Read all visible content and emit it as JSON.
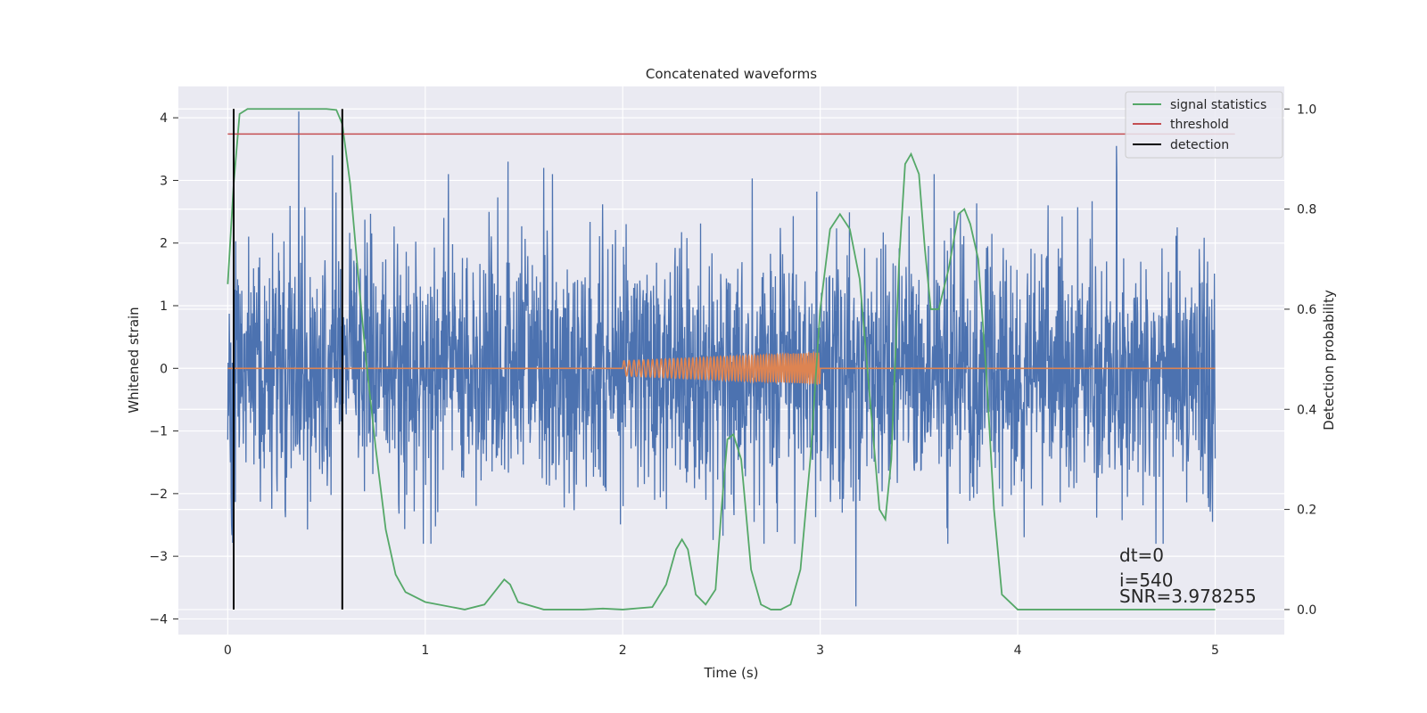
{
  "chart_data": {
    "type": "line",
    "title": "Concatenated waveforms",
    "xlabel": "Time (s)",
    "ylabel": "Whitened strain",
    "ylabel_right": "Detection probability",
    "xlim": [
      -0.25,
      5.35
    ],
    "ylim": [
      -4.25,
      4.5
    ],
    "ylim_right": [
      -0.05,
      1.045
    ],
    "x_ticks": [
      0,
      1,
      2,
      3,
      4,
      5
    ],
    "x_tick_labels": [
      "0",
      "1",
      "2",
      "3",
      "4",
      "5"
    ],
    "y_ticks": [
      -4,
      -3,
      -2,
      -1,
      0,
      1,
      2,
      3,
      4
    ],
    "y_tick_labels": [
      "−4",
      "−3",
      "−2",
      "−1",
      "0",
      "1",
      "2",
      "3",
      "4"
    ],
    "y_right_ticks": [
      0.0,
      0.2,
      0.4,
      0.6,
      0.8,
      1.0
    ],
    "y_right_tick_labels": [
      "0.0",
      "0.2",
      "0.4",
      "0.6",
      "0.8",
      "1.0"
    ],
    "grid": true,
    "legend_position": "top-right",
    "colors": {
      "strain": "#4c72b0",
      "template": "#dd8452",
      "signal_statistics": "#55a868",
      "threshold": "#c44e52",
      "detection": "#000000",
      "background": "#eaeaf2",
      "grid": "#ffffff"
    },
    "series": [
      {
        "name": "strain",
        "axis": "left",
        "description_source": "noise",
        "x_range": [
          0,
          5
        ],
        "amplitude_core": 1.0,
        "spikes": [
          {
            "x": 0.36,
            "y": 4.1
          },
          {
            "x": 0.53,
            "y": 3.4
          },
          {
            "x": 0.58,
            "y": -2.6
          },
          {
            "x": 1.42,
            "y": 3.3
          },
          {
            "x": 1.6,
            "y": 3.2
          },
          {
            "x": 3.18,
            "y": -3.8
          },
          {
            "x": 4.5,
            "y": 3.55
          },
          {
            "x": 4.7,
            "y": -2.8
          },
          {
            "x": 0.02,
            "y": -2.5
          }
        ]
      },
      {
        "name": "template",
        "axis": "left",
        "x_range": [
          0,
          5
        ],
        "chirp_start": 2.0,
        "chirp_end": 3.0,
        "amp_start": 0.12,
        "amp_end": 0.25
      },
      {
        "name": "signal statistics",
        "axis": "right",
        "x": [
          0.0,
          0.03,
          0.06,
          0.1,
          0.2,
          0.3,
          0.4,
          0.5,
          0.55,
          0.58,
          0.62,
          0.66,
          0.7,
          0.75,
          0.8,
          0.85,
          0.9,
          1.0,
          1.2,
          1.3,
          1.35,
          1.4,
          1.43,
          1.47,
          1.6,
          1.8,
          1.9,
          2.0,
          2.15,
          2.22,
          2.27,
          2.3,
          2.33,
          2.37,
          2.42,
          2.47,
          2.5,
          2.53,
          2.56,
          2.6,
          2.65,
          2.7,
          2.75,
          2.8,
          2.85,
          2.9,
          2.95,
          3.0,
          3.05,
          3.1,
          3.15,
          3.2,
          3.25,
          3.3,
          3.33,
          3.36,
          3.4,
          3.43,
          3.46,
          3.5,
          3.53,
          3.56,
          3.6,
          3.65,
          3.7,
          3.73,
          3.76,
          3.8,
          3.84,
          3.88,
          3.92,
          4.0,
          4.5,
          5.0
        ],
        "y": [
          0.65,
          0.85,
          0.99,
          1.0,
          1.0,
          1.0,
          1.0,
          1.0,
          0.998,
          0.97,
          0.85,
          0.67,
          0.5,
          0.32,
          0.16,
          0.07,
          0.035,
          0.015,
          0.0,
          0.01,
          0.035,
          0.06,
          0.05,
          0.015,
          0.0,
          0.0,
          0.002,
          0.0,
          0.005,
          0.05,
          0.12,
          0.14,
          0.12,
          0.03,
          0.01,
          0.04,
          0.2,
          0.34,
          0.35,
          0.3,
          0.08,
          0.01,
          0.0,
          0.0,
          0.01,
          0.08,
          0.3,
          0.6,
          0.76,
          0.79,
          0.76,
          0.66,
          0.43,
          0.2,
          0.18,
          0.3,
          0.7,
          0.89,
          0.91,
          0.87,
          0.72,
          0.6,
          0.6,
          0.68,
          0.79,
          0.8,
          0.77,
          0.7,
          0.48,
          0.2,
          0.03,
          0.0,
          0.0,
          0.0
        ]
      },
      {
        "name": "threshold",
        "axis": "right",
        "x": [
          0,
          5.1
        ],
        "y": [
          0.95,
          0.95
        ]
      },
      {
        "name": "detection",
        "axis": "right",
        "x_positions": [
          0.03,
          0.58
        ],
        "y_range": [
          0.0,
          1.0
        ]
      }
    ],
    "legend": [
      {
        "label": "signal statistics",
        "color": "#55a868"
      },
      {
        "label": "threshold",
        "color": "#c44e52"
      },
      {
        "label": "detection",
        "color": "#000000"
      }
    ],
    "annotations": {
      "dt": "dt=0",
      "i": "i=540",
      "snr": "SNR=3.978255"
    }
  }
}
